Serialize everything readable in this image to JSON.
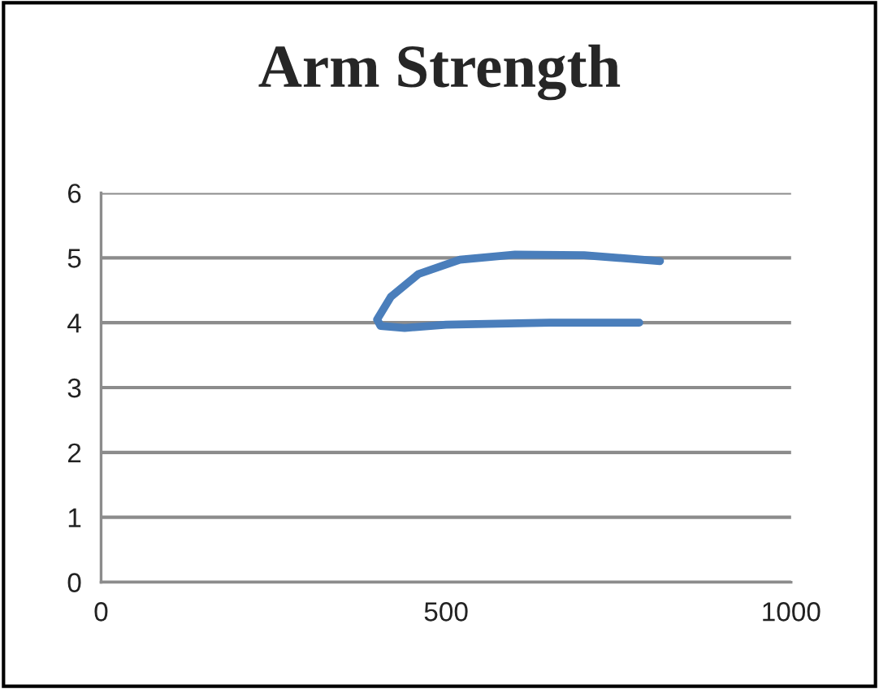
{
  "chart_data": {
    "type": "line",
    "title": "Arm Strength",
    "series": [
      {
        "color": "#4a7ebb",
        "x": [
          780,
          650,
          500,
          440,
          405,
          400,
          420,
          460,
          520,
          600,
          700,
          810
        ],
        "values": [
          4.0,
          4.0,
          3.97,
          3.92,
          3.95,
          4.05,
          4.4,
          4.75,
          4.97,
          5.05,
          5.04,
          4.95
        ]
      }
    ],
    "xlim": [
      0,
      1000
    ],
    "xticks": [
      0,
      500,
      1000
    ],
    "ylim": [
      0,
      6
    ],
    "yticks": [
      0,
      1,
      2,
      3,
      4,
      5,
      6
    ],
    "grid": "y",
    "legend": false,
    "marker": "none",
    "line_style": "solid"
  }
}
